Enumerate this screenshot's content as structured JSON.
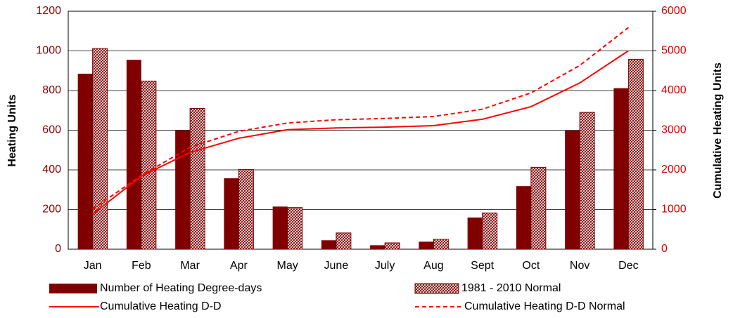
{
  "chart_data": {
    "type": "bar",
    "y_label": "Heating Units",
    "y2_label": "Cumulative Heating Units",
    "categories": [
      "Jan",
      "Feb",
      "Mar",
      "Apr",
      "May",
      "June",
      "July",
      "Aug",
      "Sept",
      "Oct",
      "Nov",
      "Dec"
    ],
    "series": [
      {
        "name": "Number of Heating Degree-days",
        "type": "bar",
        "color": "#800000",
        "values": [
          885,
          955,
          600,
          358,
          215,
          45,
          20,
          38,
          160,
          318,
          598,
          812
        ]
      },
      {
        "name": "1981 - 2010 Normal",
        "type": "bar",
        "color": "#800000",
        "hatch": true,
        "values": [
          1012,
          848,
          710,
          402,
          210,
          82,
          32,
          50,
          183,
          413,
          690,
          958
        ]
      },
      {
        "name": "Cumulative Heating D-D",
        "type": "line",
        "axis": "y2",
        "color": "#ff0000",
        "dash": false,
        "values": [
          885,
          1840,
          2440,
          2798,
          3013,
          3058,
          3078,
          3116,
          3276,
          3594,
          4192,
          5004
        ]
      },
      {
        "name": "Cumulative Heating D-D Normal",
        "type": "line",
        "axis": "y2",
        "color": "#ff0000",
        "dash": true,
        "values": [
          1012,
          1860,
          2570,
          2972,
          3182,
          3264,
          3296,
          3346,
          3529,
          3942,
          4632,
          5590
        ]
      }
    ],
    "ylim": [
      0,
      1200
    ],
    "yticks": [
      0,
      200,
      400,
      600,
      800,
      1000,
      1200
    ],
    "y2lim": [
      0,
      6000
    ],
    "y2ticks": [
      0,
      1000,
      2000,
      3000,
      4000,
      5000,
      6000
    ],
    "grid": true
  }
}
